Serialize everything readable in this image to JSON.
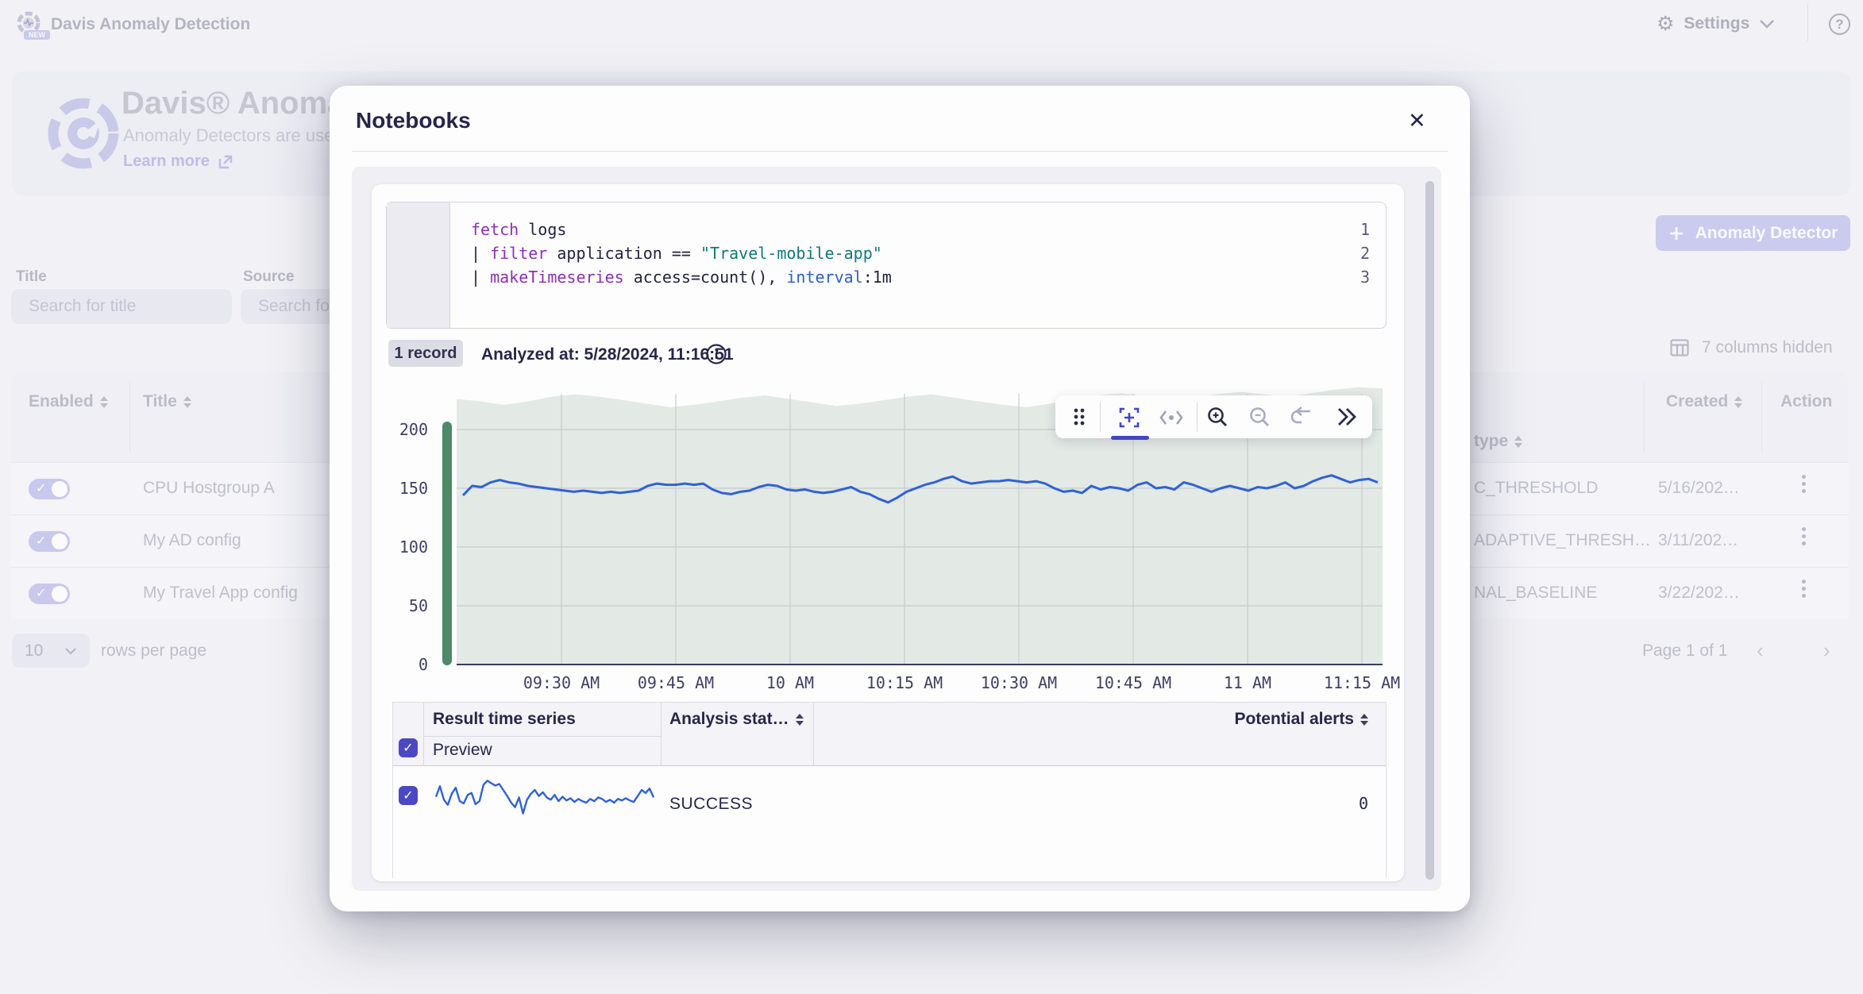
{
  "topbar": {
    "app_title": "Davis Anomaly Detection",
    "logo_badge": "NEW",
    "settings_label": "Settings",
    "help_glyph": "?"
  },
  "background": {
    "banner": {
      "title": "Davis® Anomaly",
      "subtitle": "Anomaly Detectors are used",
      "learn_more": "Learn more"
    },
    "filters": {
      "title_label": "Title",
      "title_placeholder": "Search for title",
      "source_label": "Source",
      "source_placeholder": "Search fo"
    },
    "left_table": {
      "col_enabled": "Enabled",
      "col_title": "Title",
      "rows": [
        {
          "enabled": true,
          "title": "CPU Hostgroup A"
        },
        {
          "enabled": true,
          "title": "My AD config"
        },
        {
          "enabled": true,
          "title": "My Travel App config"
        }
      ]
    },
    "right_table": {
      "col_type": "type",
      "col_created": "Created",
      "col_action": "Action",
      "columns_hidden": "7 columns hidden",
      "rows": [
        {
          "type": "C_THRESHOLD",
          "created": "5/16/202…"
        },
        {
          "type": "ADAPTIVE_THRESH…",
          "created": "3/11/202…"
        },
        {
          "type": "NAL_BASELINE",
          "created": "3/22/202…"
        }
      ]
    },
    "add_button_label": "Anomaly Detector",
    "pagination": {
      "rows_per_page_value": "10",
      "rows_per_page_label": "rows per page",
      "page_label": "Page 1 of 1"
    }
  },
  "modal": {
    "title": "Notebooks",
    "editor": {
      "code_colors": {
        "keyword": "#8e2eb8",
        "plain": "#23233f",
        "string": "#0e7a78",
        "param": "#2a5fd0"
      },
      "lines": [
        {
          "num": "1",
          "tokens": [
            {
              "t": "fetch",
              "c": "keyword"
            },
            {
              "t": " logs",
              "c": "plain"
            }
          ]
        },
        {
          "num": "2",
          "tokens": [
            {
              "t": "| ",
              "c": "plain"
            },
            {
              "t": "filter",
              "c": "keyword"
            },
            {
              "t": " application == ",
              "c": "plain"
            },
            {
              "t": "\"Travel-mobile-app\"",
              "c": "string"
            }
          ]
        },
        {
          "num": "3",
          "tokens": [
            {
              "t": "| ",
              "c": "plain"
            },
            {
              "t": "makeTimeseries",
              "c": "keyword"
            },
            {
              "t": " access=count(), ",
              "c": "plain"
            },
            {
              "t": "interval",
              "c": "param"
            },
            {
              "t": ":1m",
              "c": "plain"
            }
          ]
        }
      ]
    },
    "meta": {
      "records_badge": "1 record",
      "analyzed_at": "Analyzed at: 5/28/2024, 11:16:51"
    },
    "result_table": {
      "col_result": "Result time series",
      "col_preview": "Preview",
      "col_analysis": "Analysis stat…",
      "col_alerts": "Potential alerts",
      "row": {
        "status": "SUCCESS",
        "alerts": "0"
      }
    }
  },
  "chart_data": [
    {
      "id": "main-timeseries",
      "type": "line",
      "title": "",
      "xlabel": "",
      "ylabel": "",
      "x_ticks": [
        "09:30 AM",
        "09:45 AM",
        "10 AM",
        "10:15 AM",
        "10:30 AM",
        "10:45 AM",
        "11 AM",
        "11:15 AM"
      ],
      "y_ticks": [
        0,
        50,
        100,
        150,
        200
      ],
      "ylim": [
        0,
        233
      ],
      "grid": true,
      "legend": "none",
      "series": [
        {
          "name": "access",
          "color": "#2f62d8",
          "values": [
            144,
            152,
            151,
            155,
            157,
            155,
            154,
            152,
            151,
            150,
            149,
            148,
            147,
            148,
            147,
            146,
            147,
            146,
            147,
            148,
            152,
            154,
            153,
            153,
            154,
            153,
            154,
            149,
            146,
            145,
            147,
            148,
            151,
            153,
            152,
            149,
            148,
            149,
            147,
            146,
            147,
            149,
            151,
            147,
            145,
            141,
            138,
            142,
            147,
            150,
            153,
            155,
            158,
            160,
            156,
            154,
            155,
            156,
            156,
            157,
            156,
            155,
            156,
            154,
            150,
            147,
            148,
            146,
            152,
            149,
            151,
            150,
            148,
            153,
            155,
            150,
            151,
            149,
            155,
            153,
            150,
            147,
            150,
            152,
            150,
            148,
            151,
            150,
            152,
            155,
            150,
            152,
            156,
            159,
            161,
            158,
            155,
            157,
            158,
            155
          ]
        },
        {
          "name": "expected-range-upper-bound",
          "color": "#e3e9e4",
          "values": [
            226,
            224,
            221,
            224,
            228,
            230,
            228,
            225,
            222,
            219,
            221,
            224,
            227,
            229,
            226,
            223,
            220,
            222,
            225,
            228,
            230,
            227,
            224,
            221,
            219,
            222,
            226,
            229,
            231,
            228,
            225,
            227,
            230,
            232,
            230,
            228,
            231,
            234,
            236,
            235
          ]
        }
      ]
    },
    {
      "id": "preview-sparkline",
      "type": "line",
      "color": "#2f62d8",
      "values": [
        50,
        78,
        42,
        28,
        58,
        74,
        38,
        32,
        55,
        60,
        30,
        38,
        82,
        93,
        86,
        80,
        84,
        68,
        52,
        34,
        22,
        48,
        5,
        42,
        58,
        68,
        52,
        62,
        48,
        42,
        55,
        38,
        50,
        40,
        46,
        36,
        44,
        38,
        34,
        44,
        38,
        48,
        44,
        36,
        42,
        34,
        44,
        40,
        46,
        40,
        36,
        52,
        68,
        60,
        72,
        48
      ]
    }
  ]
}
